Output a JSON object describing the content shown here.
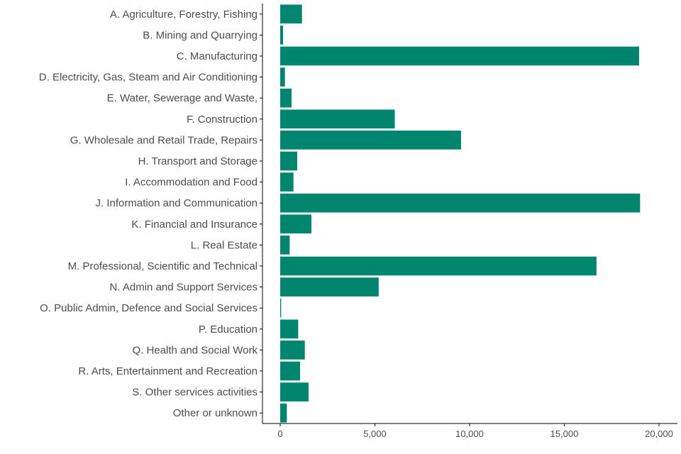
{
  "chart_data": {
    "type": "bar",
    "orientation": "horizontal",
    "categories": [
      "A. Agriculture, Forestry, Fishing",
      "B. Mining and Quarrying",
      "C. Manufacturing",
      "D. Electricity, Gas, Steam and Air Conditioning",
      "E. Water, Sewerage and Waste,",
      "F. Construction",
      "G. Wholesale and Retail Trade, Repairs",
      "H. Transport and Storage",
      "I. Accommodation and Food",
      "J. Information and Communication",
      "K. Financial and Insurance",
      "L. Real Estate",
      "M. Professional, Scientific and Technical",
      "N. Admin and Support Services",
      "O. Public Admin, Defence and Social Services",
      "P. Education",
      "Q. Health and Social Work",
      "R. Arts, Entertainment and Recreation",
      "S. Other services activities",
      "Other or unknown"
    ],
    "values": [
      1150,
      150,
      18950,
      250,
      600,
      6050,
      9550,
      900,
      700,
      19000,
      1650,
      500,
      16700,
      5200,
      50,
      950,
      1300,
      1050,
      1500,
      350
    ],
    "xticks": [
      0,
      5000,
      10000,
      15000,
      20000
    ],
    "xtick_labels": [
      "0",
      "5,000",
      "10,000",
      "15,000",
      "20,000"
    ],
    "xlim": [
      0,
      20000
    ],
    "title": "",
    "xlabel": "",
    "ylabel": "",
    "grid": false,
    "bar_color": "#00856f"
  }
}
